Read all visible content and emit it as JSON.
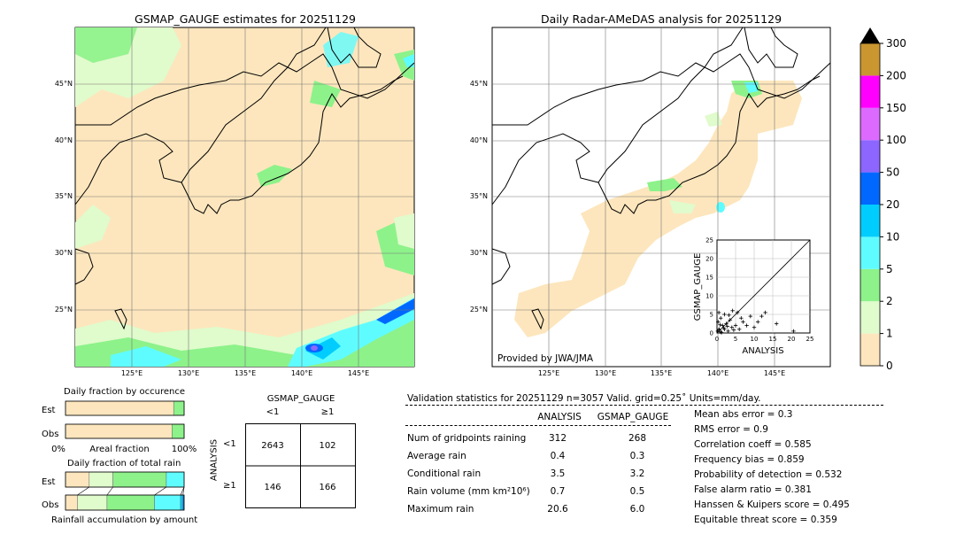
{
  "left_map": {
    "title": "GSMAP_GAUGE estimates for 20251129",
    "lat_labels": [
      "45°N",
      "40°N",
      "35°N",
      "30°N",
      "25°N"
    ],
    "lon_labels": [
      "125°E",
      "130°E",
      "135°E",
      "140°E",
      "145°E"
    ]
  },
  "right_map": {
    "title": "Daily Radar-AMeDAS analysis for 20251129",
    "lat_labels": [
      "45°N",
      "40°N",
      "35°N",
      "30°N",
      "25°N"
    ],
    "lon_labels": [
      "125°E",
      "130°E",
      "135°E",
      "140°E",
      "145°E"
    ],
    "credit": "Provided by JWA/JMA"
  },
  "colorbar": {
    "levels": [
      "0",
      "1",
      "2",
      "5",
      "10",
      "20",
      "50",
      "100",
      "150",
      "200",
      "300"
    ],
    "colors": [
      "#fde6bd",
      "#e0fbcc",
      "#8df28a",
      "#5ffcff",
      "#00cdfd",
      "#0068ff",
      "#8c66ff",
      "#dc6aff",
      "#ff00ff",
      "#ca9630"
    ]
  },
  "scatter": {
    "xlabel": "ANALYSIS",
    "ylabel": "GSMAP_GAUGE",
    "ticks": [
      "0",
      "5",
      "10",
      "15",
      "20",
      "25"
    ]
  },
  "occurrence": {
    "title": "Daily fraction by occurence",
    "rows": [
      "Est",
      "Obs"
    ],
    "xmin": "0%",
    "xmid": "Areal fraction",
    "xmax": "100%"
  },
  "amount": {
    "title": "Daily fraction of total rain",
    "rows": [
      "Est",
      "Obs"
    ],
    "xlabel": "Rainfall accumulation by amount"
  },
  "contingency": {
    "col_title": "GSMAP_GAUGE",
    "row_title": "ANALYSIS",
    "col_labels": [
      "<1",
      "≥1"
    ],
    "row_labels": [
      "<1",
      "≥1"
    ],
    "cells": [
      [
        "2643",
        "102"
      ],
      [
        "146",
        "166"
      ]
    ]
  },
  "validation": {
    "header": "Validation statistics for 20251129  n=3057 Valid. grid=0.25˚ Units=mm/day.",
    "col_analysis": "ANALYSIS",
    "col_gsmap": "GSMAP_GAUGE",
    "rows": [
      {
        "label": "Num of gridpoints raining",
        "analysis": "312",
        "gsmap": "268"
      },
      {
        "label": "Average rain",
        "analysis": "0.4",
        "gsmap": "0.3"
      },
      {
        "label": "Conditional rain",
        "analysis": "3.5",
        "gsmap": "3.2"
      },
      {
        "label": "Rain volume (mm km²10⁶)",
        "analysis": "0.7",
        "gsmap": "0.5"
      },
      {
        "label": "Maximum rain",
        "analysis": "20.6",
        "gsmap": "6.0"
      }
    ],
    "scores": [
      "Mean abs error =    0.3",
      "RMS error =    0.9",
      "Correlation coeff =  0.585",
      "Frequency bias =  0.859",
      "Probability of detection =  0.532",
      "False alarm ratio =  0.381",
      "Hanssen & Kuipers score =  0.495",
      "Equitable threat score =  0.359"
    ]
  },
  "chart_data": [
    {
      "type": "scatter",
      "xlabel": "ANALYSIS",
      "ylabel": "GSMAP_GAUGE",
      "xlim": [
        0,
        25
      ],
      "ylim": [
        0,
        25
      ],
      "points": [
        [
          0.2,
          0.5
        ],
        [
          0.5,
          1.0
        ],
        [
          1.0,
          0.3
        ],
        [
          1.5,
          2.0
        ],
        [
          2.0,
          1.0
        ],
        [
          0.3,
          3.0
        ],
        [
          3.0,
          0.5
        ],
        [
          2.5,
          2.5
        ],
        [
          4.0,
          1.5
        ],
        [
          1.0,
          4.0
        ],
        [
          5.0,
          2.0
        ],
        [
          0.5,
          5.5
        ],
        [
          3.5,
          3.5
        ],
        [
          6.0,
          1.0
        ],
        [
          2.0,
          5.0
        ],
        [
          7.0,
          3.0
        ],
        [
          1.2,
          0.1
        ],
        [
          0.8,
          2.2
        ],
        [
          4.5,
          0.8
        ],
        [
          8.0,
          2.0
        ],
        [
          9.0,
          4.5
        ],
        [
          6.5,
          4.0
        ],
        [
          5.5,
          5.5
        ],
        [
          10.0,
          1.5
        ],
        [
          11.0,
          3.0
        ],
        [
          12.0,
          4.5
        ],
        [
          13.0,
          5.5
        ],
        [
          3.2,
          4.8
        ],
        [
          4.2,
          6.0
        ],
        [
          16.0,
          2.5
        ],
        [
          20.6,
          0.5
        ],
        [
          1.8,
          1.4
        ],
        [
          0.6,
          0.9
        ],
        [
          2.8,
          1.8
        ]
      ]
    },
    {
      "type": "bar",
      "title": "Daily fraction by occurence",
      "categories": [
        "Est",
        "Obs"
      ],
      "series": [
        {
          "values": [
            0.912,
            0.898
          ]
        },
        {
          "values": [
            0.088,
            0.102
          ]
        }
      ]
    },
    {
      "type": "bar",
      "title": "Daily fraction of total rain",
      "categories": [
        "Est",
        "Obs"
      ],
      "series": [
        {
          "values": [
            0.2,
            0.1
          ]
        },
        {
          "values": [
            0.2,
            0.25
          ]
        },
        {
          "values": [
            0.45,
            0.4
          ]
        },
        {
          "values": [
            0.15,
            0.22
          ]
        },
        {
          "values": [
            0.0,
            0.02
          ]
        },
        {
          "values": [
            0.0,
            0.01
          ]
        }
      ]
    }
  ]
}
